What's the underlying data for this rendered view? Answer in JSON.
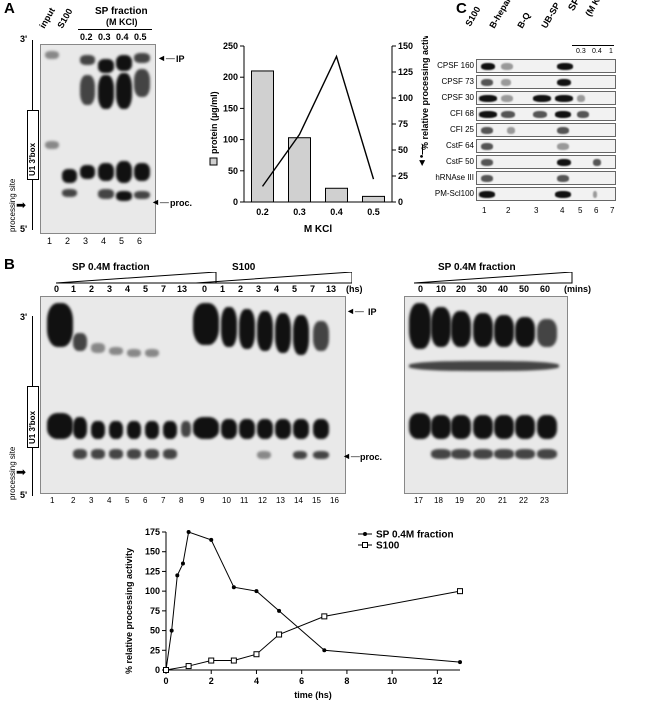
{
  "panels": {
    "A": {
      "letter": "A",
      "lane_headers": [
        "input",
        "S100"
      ],
      "sp_header": "SP fraction",
      "sp_sub": "(M KCl)",
      "conc": [
        "0.2",
        "0.3",
        "0.4",
        "0.5"
      ],
      "lane_numbers": [
        "1",
        "2",
        "3",
        "4",
        "5",
        "6"
      ],
      "ip_label": "IP",
      "proc_label": "proc.",
      "three": "3'",
      "five": "5'",
      "box_label": "U1 3'box",
      "site_label": "processing site"
    },
    "B": {
      "letter": "B",
      "sp_title": "SP 0.4M fraction",
      "s100_title": "S100",
      "hs_unit": "(hs)",
      "time_hs_sp": [
        "0",
        "1",
        "2",
        "3",
        "4",
        "5",
        "7",
        "13"
      ],
      "time_hs_s100": [
        "0",
        "1",
        "2",
        "3",
        "4",
        "5",
        "7",
        "13"
      ],
      "lane_numbers_left": [
        "1",
        "2",
        "3",
        "4",
        "5",
        "6",
        "7",
        "8",
        "9",
        "10",
        "11",
        "12",
        "13",
        "14",
        "15",
        "16"
      ],
      "right_title": "SP 0.4M fraction",
      "mins_unit": "(mins)",
      "time_mins": [
        "0",
        "10",
        "20",
        "30",
        "40",
        "50",
        "60"
      ],
      "lane_numbers_right": [
        "17",
        "18",
        "19",
        "20",
        "21",
        "22",
        "23"
      ],
      "ip_label": "IP",
      "proc_label": "proc.",
      "three": "3'",
      "five": "5'",
      "box_label": "U1 3'box",
      "site_label": "processing site"
    },
    "C": {
      "letter": "C",
      "col_headers": [
        "S100",
        "B-heparin",
        "B-Q",
        "UB-SP"
      ],
      "sp_header": "SP fraction",
      "sp_sub": "(M KCl)",
      "conc": [
        "0.3",
        "0.4",
        "1"
      ],
      "rows": [
        "CPSF 160",
        "CPSF 73",
        "CPSF 30",
        "CFI 68",
        "CFI 25",
        "CstF 64",
        "CstF 50",
        "hRNAse III",
        "PM-Scl100"
      ],
      "lane_numbers": [
        "1",
        "2",
        "3",
        "4",
        "5",
        "6",
        "7"
      ]
    }
  },
  "chart_data": [
    {
      "type": "bar",
      "categories": [
        "0.2",
        "0.3",
        "0.4",
        "0.5"
      ],
      "values": [
        210,
        103,
        22,
        9
      ],
      "line_values": [
        15,
        65,
        140,
        22
      ],
      "xlabel": "M KCl",
      "ylabel": "protein (µg/ml)",
      "y2label": "% relative processing activity",
      "ylim": [
        0,
        250
      ],
      "y2lim": [
        0,
        150
      ],
      "yticks": [
        "0",
        "50",
        "100",
        "150",
        "200",
        "250"
      ],
      "y2ticks": [
        "0",
        "25",
        "50",
        "75",
        "100",
        "125",
        "150"
      ],
      "bar_color": "#d0d0d0"
    },
    {
      "type": "line",
      "xlabel": "time (hs)",
      "ylabel": "% relative processing activity",
      "xlim": [
        0,
        13
      ],
      "ylim": [
        0,
        175
      ],
      "xticks": [
        "0",
        "2",
        "4",
        "6",
        "8",
        "10",
        "12"
      ],
      "yticks": [
        "0",
        "25",
        "50",
        "75",
        "100",
        "125",
        "150",
        "175"
      ],
      "legend_position": "top-right",
      "series": [
        {
          "name": "SP 0.4M fraction",
          "x": [
            0,
            0.25,
            0.5,
            0.75,
            1,
            2,
            3,
            4,
            5,
            7,
            13
          ],
          "y": [
            0,
            50,
            120,
            135,
            175,
            165,
            105,
            100,
            75,
            25,
            10
          ],
          "marker": "dot"
        },
        {
          "name": "S100",
          "x": [
            0,
            1,
            2,
            3,
            4,
            5,
            7,
            13
          ],
          "y": [
            0,
            5,
            12,
            12,
            20,
            45,
            68,
            100
          ],
          "marker": "square"
        }
      ]
    }
  ]
}
